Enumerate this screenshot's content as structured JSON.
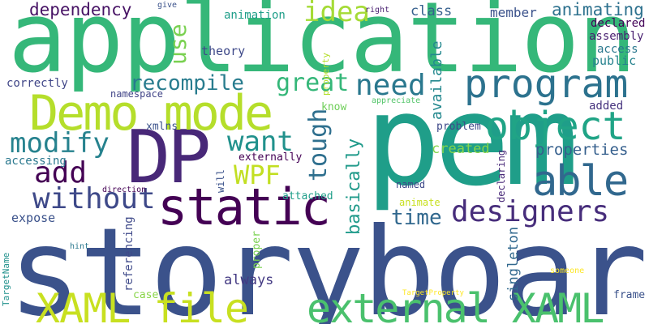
{
  "words": [
    {
      "text": "storyboard",
      "color": "#3b528b"
    },
    {
      "text": "application",
      "color": "#35b779"
    },
    {
      "text": "pem",
      "color": "#1f9e89"
    },
    {
      "text": "DP",
      "color": "#482878"
    },
    {
      "text": "Demo mode",
      "color": "#b5de2b"
    },
    {
      "text": "static",
      "color": "#440154"
    },
    {
      "text": "XAML file",
      "color": "#c8e020"
    },
    {
      "text": "external XAML",
      "color": "#4ac16d"
    },
    {
      "text": "program",
      "color": "#2c728e"
    },
    {
      "text": "object",
      "color": "#20a486"
    },
    {
      "text": "able",
      "color": "#31688e"
    },
    {
      "text": "without",
      "color": "#3e4989"
    },
    {
      "text": "designers",
      "color": "#472d7b"
    },
    {
      "text": "modify",
      "color": "#26828e"
    },
    {
      "text": "want",
      "color": "#21918c"
    },
    {
      "text": "add",
      "color": "#440154"
    },
    {
      "text": "WPF",
      "color": "#c2df23"
    },
    {
      "text": "recompile",
      "color": "#287c8e"
    },
    {
      "text": "great",
      "color": "#35b779"
    },
    {
      "text": "need",
      "color": "#2a788e"
    },
    {
      "text": "idea",
      "color": "#a5db36"
    },
    {
      "text": "use",
      "color": "#7ad151"
    },
    {
      "text": "tough",
      "color": "#2e6f8e"
    },
    {
      "text": "basically",
      "color": "#1f9a8a"
    },
    {
      "text": "time",
      "color": "#31688e"
    },
    {
      "text": "properties",
      "color": "#355f8d"
    },
    {
      "text": "dependency",
      "color": "#471365"
    },
    {
      "text": "animating",
      "color": "#2d718e"
    },
    {
      "text": "member",
      "color": "#3b528b"
    },
    {
      "text": "class",
      "color": "#355f8d"
    },
    {
      "text": "available",
      "color": "#23888e"
    },
    {
      "text": "created",
      "color": "#84d44b"
    },
    {
      "text": "singleton",
      "color": "#31688e"
    },
    {
      "text": "always",
      "color": "#443a83"
    },
    {
      "text": "expose",
      "color": "#3b528b"
    },
    {
      "text": "referencing",
      "color": "#3e4989"
    },
    {
      "text": "accessing",
      "color": "#2a788e"
    },
    {
      "text": "correctly",
      "color": "#404688"
    },
    {
      "text": "theory",
      "color": "#3e4989"
    },
    {
      "text": "animation",
      "color": "#1f9e89"
    },
    {
      "text": "declared",
      "color": "#450559"
    },
    {
      "text": "assembly",
      "color": "#481f70"
    },
    {
      "text": "access",
      "color": "#2a788e"
    },
    {
      "text": "public",
      "color": "#26828e"
    },
    {
      "text": "added",
      "color": "#46337e"
    },
    {
      "text": "problem",
      "color": "#3e4989"
    },
    {
      "text": "xmlns",
      "color": "#3b528b"
    },
    {
      "text": "namespace",
      "color": "#414487"
    },
    {
      "text": "externally",
      "color": "#440154"
    },
    {
      "text": "attached",
      "color": "#1f9e89"
    },
    {
      "text": "named",
      "color": "#3e4989"
    },
    {
      "text": "animate",
      "color": "#c8e020"
    },
    {
      "text": "declaring",
      "color": "#482878"
    },
    {
      "text": "frame",
      "color": "#3b528b"
    },
    {
      "text": "case",
      "color": "#89d548"
    },
    {
      "text": "proper",
      "color": "#7ad151"
    },
    {
      "text": "will",
      "color": "#3b528b"
    },
    {
      "text": "know",
      "color": "#6ece58"
    },
    {
      "text": "property",
      "color": "#b5de2b"
    },
    {
      "text": "give",
      "color": "#3b528b"
    },
    {
      "text": "right",
      "color": "#481f70"
    },
    {
      "text": "appreciate",
      "color": "#52c569"
    },
    {
      "text": "direction",
      "color": "#440154"
    },
    {
      "text": "hint",
      "color": "#2a788e"
    },
    {
      "text": "TargetName",
      "color": "#21918c"
    },
    {
      "text": "TargetProperty",
      "color": "#fde725"
    },
    {
      "text": "someone",
      "color": "#fde725"
    }
  ]
}
